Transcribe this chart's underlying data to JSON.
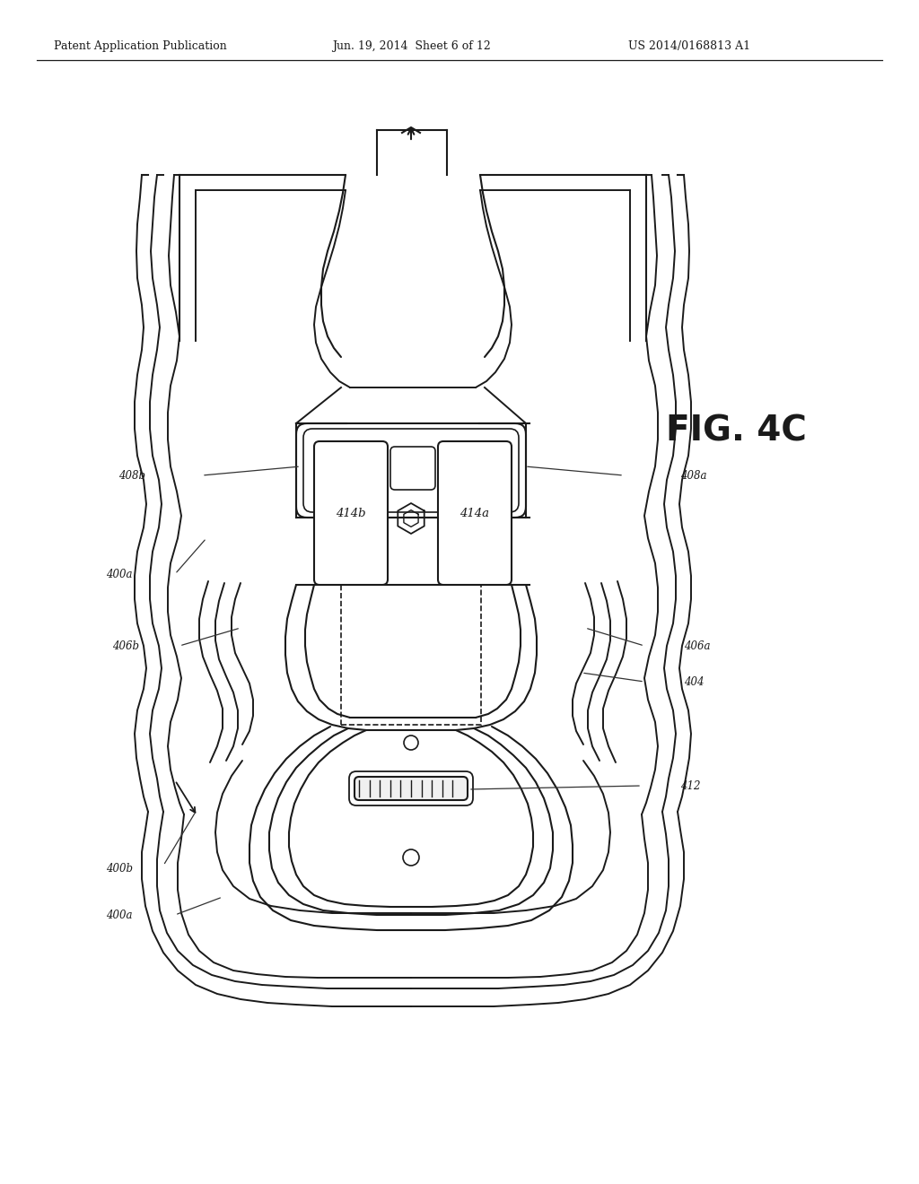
{
  "bg_color": "#ffffff",
  "line_color": "#1a1a1a",
  "header_left": "Patent Application Publication",
  "header_mid": "Jun. 19, 2014  Sheet 6 of 12",
  "header_right": "US 2014/0168813 A1",
  "fig_label": "FIG. 4C",
  "label_408b": "408b",
  "label_408a": "408a",
  "label_400a": "400a",
  "label_406b": "406b",
  "label_406a": "406a",
  "label_404": "404",
  "label_412": "412",
  "label_414b": "414b",
  "label_414a": "414a",
  "label_400b": "400b",
  "label_400a2": "400a"
}
